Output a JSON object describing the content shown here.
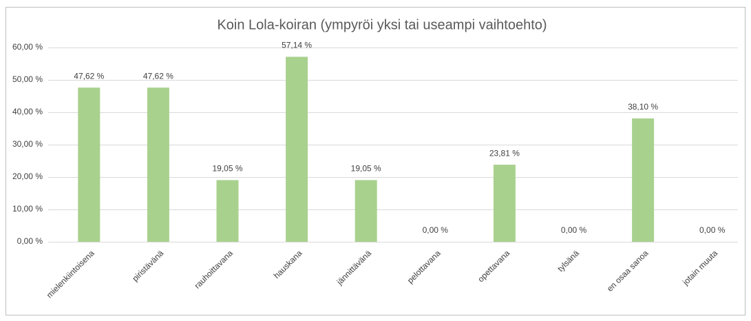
{
  "chart_data": {
    "type": "bar",
    "title": "Koin Lola-koiran (ympyröi yksi tai useampi vaihtoehto)",
    "categories": [
      "mielenkiintoisena",
      "piristävänä",
      "rauhoittavana",
      "hauskana",
      "jännittävänä",
      "pelottavana",
      "opettavana",
      "tylsänä",
      "en osaa sanoa",
      "jotain muuta"
    ],
    "values": [
      47.62,
      47.62,
      19.05,
      57.14,
      19.05,
      0,
      23.81,
      0,
      38.1,
      0
    ],
    "value_labels": [
      "47,62 %",
      "47,62 %",
      "19,05 %",
      "57,14 %",
      "19,05 %",
      "0,00 %",
      "23,81 %",
      "0,00 %",
      "38,10 %",
      "0,00 %"
    ],
    "color": "#a9d18e",
    "ylim": [
      0,
      60
    ],
    "yticks": [
      {
        "value": 0,
        "label": "0,00 %"
      },
      {
        "value": 10,
        "label": "10,00 %"
      },
      {
        "value": 20,
        "label": "20,00 %"
      },
      {
        "value": 30,
        "label": "30,00 %"
      },
      {
        "value": 40,
        "label": "40,00 %"
      },
      {
        "value": 50,
        "label": "50,00 %"
      },
      {
        "value": 60,
        "label": "60,00 %"
      }
    ],
    "grid": true
  }
}
